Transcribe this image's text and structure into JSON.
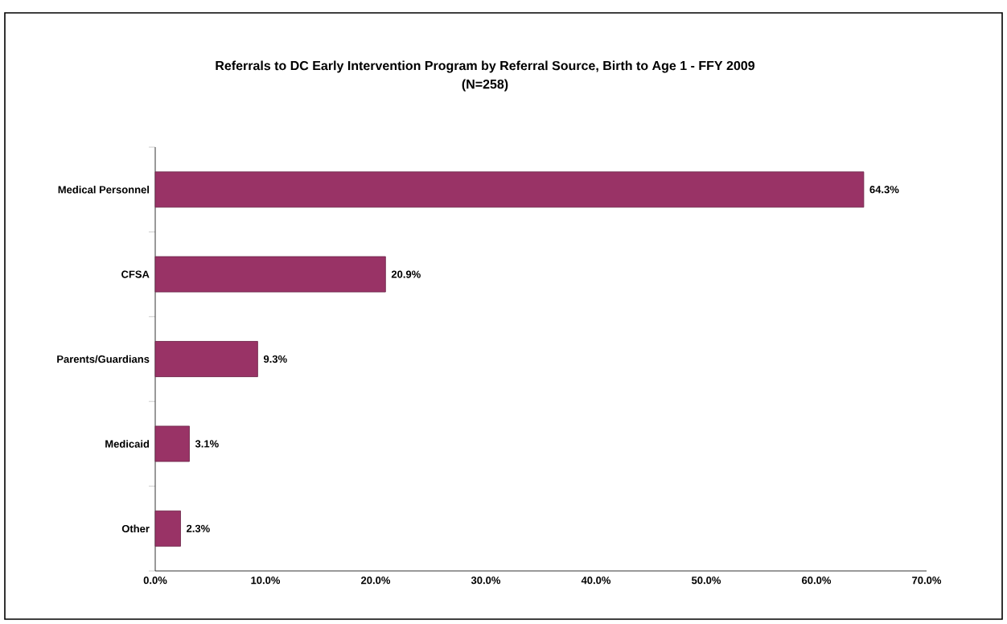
{
  "chart_data": {
    "type": "bar",
    "orientation": "horizontal",
    "title": "Referrals to DC Early Intervention Program by Referral Source, Birth to Age 1 - FFY 2009",
    "subtitle": "(N=258)",
    "categories": [
      "Medical Personnel",
      "CFSA",
      "Parents/Guardians",
      "Medicaid",
      "Other"
    ],
    "values": [
      64.3,
      20.9,
      9.3,
      3.1,
      2.3
    ],
    "value_labels": [
      "64.3%",
      "20.9%",
      "9.3%",
      "3.1%",
      "2.3%"
    ],
    "color": "#993366",
    "xlim": [
      0,
      70
    ],
    "xticks": [
      {
        "value": 0,
        "label": "0.0%"
      },
      {
        "value": 10,
        "label": "10.0%"
      },
      {
        "value": 20,
        "label": "20.0%"
      },
      {
        "value": 30,
        "label": "30.0%"
      },
      {
        "value": 40,
        "label": "40.0%"
      },
      {
        "value": 50,
        "label": "50.0%"
      },
      {
        "value": 60,
        "label": "60.0%"
      },
      {
        "value": 70,
        "label": "70.0%"
      }
    ]
  }
}
